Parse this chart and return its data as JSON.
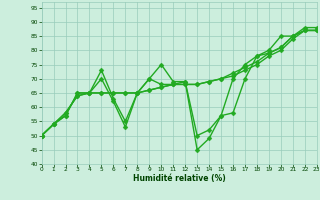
{
  "xlabel": "Humidité relative (%)",
  "xlim": [
    0,
    23
  ],
  "ylim": [
    40,
    97
  ],
  "yticks": [
    40,
    45,
    50,
    55,
    60,
    65,
    70,
    75,
    80,
    85,
    90,
    95
  ],
  "xticks": [
    0,
    1,
    2,
    3,
    4,
    5,
    6,
    7,
    8,
    9,
    10,
    11,
    12,
    13,
    14,
    15,
    16,
    17,
    18,
    19,
    20,
    21,
    22,
    23
  ],
  "bg_color": "#cceedd",
  "grid_color": "#99ccbb",
  "line_color": "#22aa22",
  "line_width": 1.0,
  "markersize": 2.5,
  "series1": [
    50,
    54,
    57,
    65,
    65,
    70,
    62,
    53,
    65,
    70,
    75,
    69,
    69,
    45,
    49,
    57,
    58,
    70,
    78,
    79,
    81,
    85,
    87,
    87
  ],
  "series2": [
    50,
    54,
    57,
    65,
    65,
    73,
    63,
    55,
    65,
    70,
    68,
    68,
    69,
    50,
    52,
    57,
    70,
    75,
    78,
    80,
    85,
    85,
    88,
    88
  ],
  "series3": [
    50,
    54,
    58,
    64,
    65,
    65,
    65,
    65,
    65,
    66,
    67,
    68,
    68,
    68,
    69,
    70,
    71,
    73,
    75,
    78,
    80,
    84,
    87,
    87
  ],
  "series4": [
    50,
    54,
    58,
    64,
    65,
    65,
    65,
    65,
    65,
    66,
    67,
    68,
    68,
    68,
    69,
    70,
    72,
    74,
    76,
    79,
    81,
    85,
    87,
    87
  ]
}
